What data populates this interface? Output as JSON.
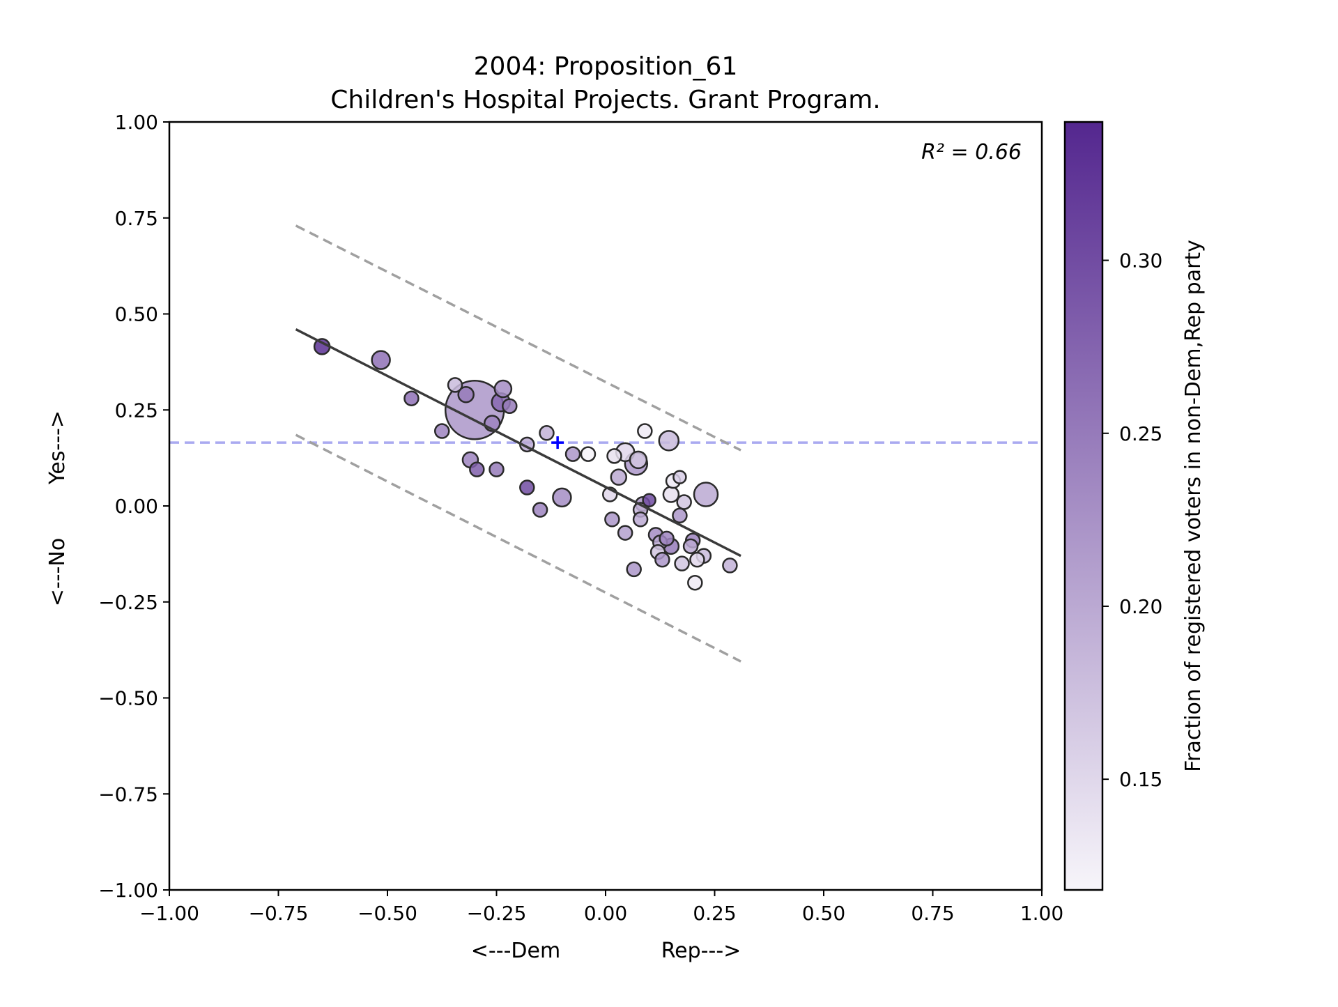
{
  "chart_data": {
    "type": "scatter",
    "title": "2004: Proposition_61",
    "subtitle": "Children's Hospital Projects. Grant Program.",
    "xlabel_left": "<---Dem",
    "xlabel_right": "Rep--->",
    "ylabel_bottom": "<---No",
    "ylabel_top": "Yes--->",
    "xlim": [
      -1.0,
      1.0
    ],
    "ylim": [
      -1.0,
      1.0
    ],
    "x_ticks": [
      -1.0,
      -0.75,
      -0.5,
      -0.25,
      0.0,
      0.25,
      0.5,
      0.75,
      1.0
    ],
    "y_ticks": [
      -1.0,
      -0.75,
      -0.5,
      -0.25,
      0.0,
      0.25,
      0.5,
      0.75,
      1.0
    ],
    "x_tick_labels": [
      "−1.00",
      "−0.75",
      "−0.50",
      "−0.25",
      "0.00",
      "0.25",
      "0.50",
      "0.75",
      "1.00"
    ],
    "y_tick_labels": [
      "−1.00",
      "−0.75",
      "−0.50",
      "−0.25",
      "0.00",
      "0.25",
      "0.50",
      "0.75",
      "1.00"
    ],
    "r2_label": "R² = 0.66",
    "reference_y": 0.165,
    "reference_marker": {
      "x": -0.11,
      "y": 0.165
    },
    "regression_line": {
      "x": [
        -0.71,
        0.31
      ],
      "y": [
        0.46,
        -0.13
      ]
    },
    "band_upper": {
      "x": [
        -0.71,
        0.31
      ],
      "y": [
        0.73,
        0.145
      ]
    },
    "band_lower": {
      "x": [
        -0.71,
        0.31
      ],
      "y": [
        0.185,
        -0.405
      ]
    },
    "colorbar": {
      "label": "Fraction of registered voters in non-Dem,Rep party",
      "range": [
        0.118,
        0.34
      ],
      "ticks": [
        0.15,
        0.2,
        0.25,
        0.3
      ],
      "tick_labels": [
        "0.15",
        "0.20",
        "0.25",
        "0.30"
      ],
      "color_low": "#f7f5fa",
      "color_high": "#54278f"
    },
    "points": [
      {
        "x": -0.3,
        "y": 0.25,
        "s": 42,
        "c": 0.22
      },
      {
        "x": -0.65,
        "y": 0.415,
        "s": 11,
        "c": 0.33
      },
      {
        "x": -0.515,
        "y": 0.38,
        "s": 13,
        "c": 0.26
      },
      {
        "x": -0.445,
        "y": 0.28,
        "s": 10,
        "c": 0.26
      },
      {
        "x": -0.345,
        "y": 0.315,
        "s": 10,
        "c": 0.18
      },
      {
        "x": -0.32,
        "y": 0.29,
        "s": 11,
        "c": 0.25
      },
      {
        "x": -0.375,
        "y": 0.195,
        "s": 10,
        "c": 0.24
      },
      {
        "x": -0.235,
        "y": 0.305,
        "s": 12,
        "c": 0.23
      },
      {
        "x": -0.24,
        "y": 0.27,
        "s": 13,
        "c": 0.27
      },
      {
        "x": -0.22,
        "y": 0.26,
        "s": 10,
        "c": 0.25
      },
      {
        "x": -0.26,
        "y": 0.215,
        "s": 11,
        "c": 0.24
      },
      {
        "x": -0.31,
        "y": 0.12,
        "s": 11,
        "c": 0.24
      },
      {
        "x": -0.295,
        "y": 0.095,
        "s": 10,
        "c": 0.28
      },
      {
        "x": -0.25,
        "y": 0.095,
        "s": 10,
        "c": 0.25
      },
      {
        "x": -0.18,
        "y": 0.16,
        "s": 10,
        "c": 0.2
      },
      {
        "x": -0.135,
        "y": 0.19,
        "s": 10,
        "c": 0.19
      },
      {
        "x": -0.18,
        "y": 0.048,
        "s": 10,
        "c": 0.3
      },
      {
        "x": -0.15,
        "y": -0.01,
        "s": 10,
        "c": 0.24
      },
      {
        "x": -0.1,
        "y": 0.022,
        "s": 13,
        "c": 0.23
      },
      {
        "x": -0.075,
        "y": 0.135,
        "s": 10,
        "c": 0.22
      },
      {
        "x": -0.04,
        "y": 0.135,
        "s": 10,
        "c": 0.12
      },
      {
        "x": 0.02,
        "y": 0.13,
        "s": 10,
        "c": 0.14
      },
      {
        "x": 0.045,
        "y": 0.14,
        "s": 13,
        "c": 0.15
      },
      {
        "x": 0.07,
        "y": 0.11,
        "s": 16,
        "c": 0.22
      },
      {
        "x": 0.075,
        "y": 0.12,
        "s": 12,
        "c": 0.17
      },
      {
        "x": 0.03,
        "y": 0.075,
        "s": 11,
        "c": 0.2
      },
      {
        "x": 0.09,
        "y": 0.195,
        "s": 10,
        "c": 0.13
      },
      {
        "x": 0.145,
        "y": 0.17,
        "s": 14,
        "c": 0.18
      },
      {
        "x": 0.155,
        "y": 0.065,
        "s": 10,
        "c": 0.13
      },
      {
        "x": 0.17,
        "y": 0.075,
        "s": 9,
        "c": 0.16
      },
      {
        "x": 0.15,
        "y": 0.03,
        "s": 11,
        "c": 0.14
      },
      {
        "x": 0.23,
        "y": 0.03,
        "s": 17,
        "c": 0.2
      },
      {
        "x": 0.18,
        "y": 0.01,
        "s": 10,
        "c": 0.17
      },
      {
        "x": 0.01,
        "y": 0.03,
        "s": 10,
        "c": 0.15
      },
      {
        "x": 0.085,
        "y": 0.005,
        "s": 10,
        "c": 0.22
      },
      {
        "x": 0.1,
        "y": 0.015,
        "s": 9,
        "c": 0.3
      },
      {
        "x": 0.08,
        "y": -0.01,
        "s": 10,
        "c": 0.19
      },
      {
        "x": 0.08,
        "y": -0.035,
        "s": 10,
        "c": 0.2
      },
      {
        "x": 0.015,
        "y": -0.035,
        "s": 10,
        "c": 0.22
      },
      {
        "x": 0.045,
        "y": -0.07,
        "s": 10,
        "c": 0.21
      },
      {
        "x": 0.17,
        "y": -0.025,
        "s": 10,
        "c": 0.22
      },
      {
        "x": 0.115,
        "y": -0.075,
        "s": 10,
        "c": 0.23
      },
      {
        "x": 0.125,
        "y": -0.095,
        "s": 10,
        "c": 0.2
      },
      {
        "x": 0.14,
        "y": -0.085,
        "s": 10,
        "c": 0.24
      },
      {
        "x": 0.15,
        "y": -0.105,
        "s": 11,
        "c": 0.25
      },
      {
        "x": 0.12,
        "y": -0.12,
        "s": 10,
        "c": 0.17
      },
      {
        "x": 0.13,
        "y": -0.14,
        "s": 10,
        "c": 0.22
      },
      {
        "x": 0.2,
        "y": -0.09,
        "s": 10,
        "c": 0.24
      },
      {
        "x": 0.195,
        "y": -0.105,
        "s": 10,
        "c": 0.2
      },
      {
        "x": 0.225,
        "y": -0.13,
        "s": 10,
        "c": 0.18
      },
      {
        "x": 0.21,
        "y": -0.14,
        "s": 10,
        "c": 0.15
      },
      {
        "x": 0.175,
        "y": -0.15,
        "s": 10,
        "c": 0.17
      },
      {
        "x": 0.285,
        "y": -0.155,
        "s": 10,
        "c": 0.19
      },
      {
        "x": 0.065,
        "y": -0.165,
        "s": 10,
        "c": 0.22
      },
      {
        "x": 0.205,
        "y": -0.2,
        "s": 10,
        "c": 0.13
      }
    ]
  }
}
